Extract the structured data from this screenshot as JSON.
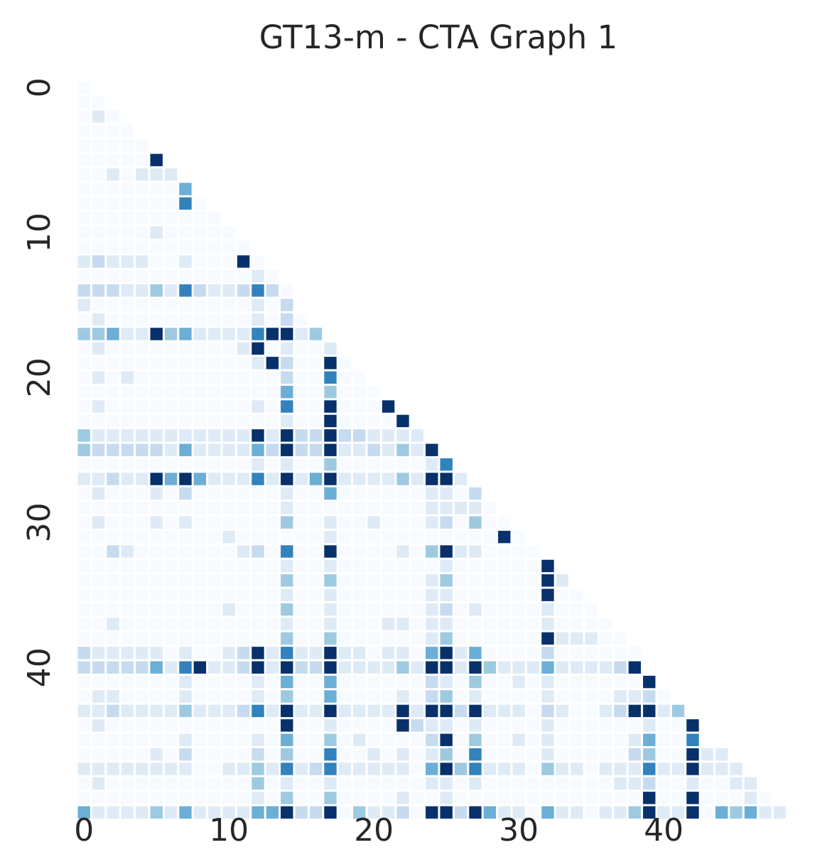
{
  "chart_data": {
    "type": "heatmap",
    "title": "GT13-m - CTA Graph 1",
    "xlabel": "",
    "ylabel": "",
    "mask": "lower-triangle",
    "n": 49,
    "x_ticks": [
      0,
      10,
      20,
      30,
      40
    ],
    "y_ticks": [
      0,
      10,
      20,
      30,
      40
    ],
    "colormap": "Blues",
    "vmin": 0,
    "vmax": 6,
    "grid": false,
    "colorbar": false,
    "rows": [
      [
        0
      ],
      [
        0,
        0
      ],
      [
        0,
        1,
        0
      ],
      [
        0,
        0,
        0,
        0
      ],
      [
        0,
        0,
        0,
        0,
        0
      ],
      [
        0,
        0,
        0,
        0,
        0,
        6
      ],
      [
        0,
        0,
        1,
        0,
        1,
        1,
        1
      ],
      [
        0,
        0,
        0,
        0,
        0,
        0,
        0,
        4
      ],
      [
        0,
        0,
        0,
        0,
        0,
        0,
        0,
        5,
        0
      ],
      [
        0,
        0,
        0,
        0,
        0,
        0,
        0,
        0,
        0,
        0
      ],
      [
        0,
        0,
        0,
        0,
        0,
        1,
        0,
        0,
        0,
        0,
        0
      ],
      [
        0,
        0,
        0,
        0,
        0,
        0,
        0,
        0,
        0,
        0,
        0,
        0
      ],
      [
        1,
        2,
        1,
        1,
        1,
        0,
        0,
        1,
        0,
        0,
        0,
        6,
        0
      ],
      [
        0,
        0,
        0,
        0,
        0,
        0,
        0,
        0,
        0,
        0,
        0,
        0,
        1,
        0
      ],
      [
        2,
        2,
        2,
        1,
        1,
        3,
        1,
        5,
        2,
        1,
        1,
        2,
        5,
        2,
        0
      ],
      [
        1,
        0,
        0,
        0,
        0,
        0,
        0,
        0,
        0,
        0,
        0,
        0,
        1,
        0,
        2
      ],
      [
        0,
        1,
        0,
        0,
        0,
        0,
        0,
        0,
        0,
        0,
        0,
        0,
        1,
        0,
        2,
        0
      ],
      [
        3,
        3,
        4,
        1,
        1,
        6,
        3,
        4,
        1,
        1,
        1,
        1,
        5,
        6,
        6,
        1,
        3
      ],
      [
        0,
        1,
        0,
        0,
        0,
        0,
        0,
        0,
        0,
        0,
        0,
        1,
        6,
        0,
        1,
        0,
        0,
        1
      ],
      [
        0,
        0,
        0,
        0,
        0,
        0,
        0,
        0,
        0,
        0,
        0,
        0,
        1,
        6,
        2,
        0,
        0,
        6,
        0
      ],
      [
        0,
        1,
        0,
        1,
        0,
        0,
        0,
        0,
        0,
        0,
        0,
        0,
        0,
        0,
        2,
        0,
        0,
        5,
        0,
        0
      ],
      [
        0,
        0,
        0,
        0,
        0,
        0,
        0,
        0,
        0,
        0,
        0,
        0,
        0,
        0,
        4,
        0,
        0,
        3,
        0,
        0,
        0
      ],
      [
        0,
        1,
        0,
        0,
        0,
        0,
        0,
        0,
        0,
        0,
        0,
        0,
        1,
        0,
        5,
        0,
        0,
        6,
        0,
        0,
        0,
        6
      ],
      [
        0,
        0,
        0,
        0,
        0,
        0,
        0,
        0,
        0,
        0,
        0,
        0,
        0,
        0,
        1,
        0,
        0,
        6,
        0,
        0,
        0,
        0,
        6
      ],
      [
        3,
        1,
        1,
        1,
        1,
        1,
        1,
        1,
        1,
        1,
        1,
        1,
        6,
        1,
        6,
        2,
        2,
        6,
        2,
        2,
        1,
        1,
        1,
        1
      ],
      [
        3,
        2,
        2,
        2,
        2,
        2,
        1,
        4,
        1,
        1,
        1,
        1,
        4,
        2,
        6,
        2,
        2,
        6,
        1,
        1,
        2,
        1,
        3,
        1,
        6
      ],
      [
        0,
        0,
        0,
        0,
        0,
        0,
        0,
        0,
        0,
        0,
        0,
        0,
        1,
        0,
        1,
        0,
        0,
        3,
        0,
        0,
        0,
        0,
        0,
        0,
        1,
        5
      ],
      [
        1,
        1,
        2,
        1,
        1,
        6,
        4,
        6,
        4,
        1,
        1,
        1,
        5,
        1,
        6,
        1,
        4,
        6,
        1,
        1,
        1,
        1,
        3,
        1,
        6,
        6,
        1
      ],
      [
        0,
        1,
        0,
        0,
        0,
        1,
        0,
        2,
        0,
        0,
        0,
        0,
        0,
        0,
        1,
        0,
        0,
        4,
        0,
        0,
        0,
        0,
        0,
        0,
        1,
        1,
        0,
        2
      ],
      [
        0,
        0,
        0,
        0,
        0,
        0,
        0,
        0,
        0,
        0,
        0,
        0,
        0,
        0,
        1,
        0,
        0,
        0,
        0,
        0,
        0,
        0,
        0,
        0,
        1,
        1,
        1,
        1,
        0
      ],
      [
        0,
        1,
        0,
        0,
        0,
        1,
        0,
        1,
        0,
        0,
        0,
        0,
        0,
        0,
        3,
        0,
        0,
        1,
        0,
        0,
        1,
        0,
        0,
        0,
        1,
        2,
        0,
        3,
        0,
        0
      ],
      [
        0,
        0,
        0,
        0,
        0,
        0,
        0,
        0,
        0,
        0,
        1,
        0,
        0,
        0,
        0,
        0,
        0,
        1,
        0,
        0,
        0,
        0,
        0,
        0,
        0,
        0,
        0,
        0,
        0,
        6,
        0
      ],
      [
        0,
        0,
        2,
        1,
        0,
        0,
        0,
        0,
        0,
        0,
        0,
        1,
        2,
        0,
        5,
        0,
        0,
        6,
        0,
        0,
        0,
        0,
        1,
        0,
        3,
        6,
        1,
        1,
        0,
        0,
        0,
        0
      ],
      [
        0,
        0,
        0,
        0,
        0,
        0,
        0,
        0,
        0,
        0,
        0,
        0,
        0,
        0,
        1,
        0,
        0,
        1,
        0,
        0,
        0,
        0,
        0,
        0,
        0,
        1,
        0,
        0,
        0,
        0,
        0,
        0,
        6
      ],
      [
        0,
        0,
        0,
        0,
        0,
        0,
        0,
        0,
        0,
        0,
        0,
        0,
        0,
        0,
        3,
        0,
        0,
        3,
        0,
        0,
        0,
        0,
        0,
        0,
        1,
        3,
        0,
        0,
        0,
        0,
        0,
        0,
        6,
        1
      ],
      [
        0,
        0,
        0,
        0,
        0,
        0,
        0,
        0,
        0,
        0,
        0,
        0,
        0,
        0,
        1,
        0,
        0,
        1,
        0,
        0,
        0,
        0,
        0,
        0,
        1,
        1,
        0,
        0,
        0,
        0,
        0,
        0,
        6,
        0,
        0
      ],
      [
        0,
        0,
        0,
        0,
        0,
        0,
        0,
        0,
        0,
        0,
        1,
        0,
        0,
        0,
        3,
        0,
        0,
        1,
        0,
        0,
        0,
        0,
        0,
        0,
        1,
        2,
        0,
        1,
        0,
        0,
        0,
        0,
        1,
        0,
        0,
        0
      ],
      [
        0,
        0,
        1,
        0,
        0,
        0,
        0,
        0,
        0,
        0,
        0,
        0,
        0,
        0,
        1,
        0,
        0,
        1,
        0,
        0,
        0,
        1,
        1,
        0,
        1,
        1,
        0,
        0,
        0,
        0,
        0,
        0,
        1,
        0,
        0,
        0,
        0
      ],
      [
        0,
        0,
        0,
        0,
        0,
        0,
        0,
        0,
        0,
        0,
        0,
        0,
        0,
        0,
        3,
        0,
        0,
        3,
        0,
        0,
        0,
        0,
        0,
        0,
        1,
        3,
        0,
        0,
        0,
        0,
        0,
        0,
        6,
        1,
        1,
        1,
        0,
        0
      ],
      [
        2,
        1,
        1,
        1,
        1,
        1,
        0,
        1,
        0,
        0,
        1,
        2,
        6,
        1,
        5,
        1,
        1,
        6,
        1,
        1,
        0,
        1,
        1,
        0,
        4,
        6,
        1,
        4,
        0,
        0,
        0,
        0,
        2,
        0,
        0,
        0,
        0,
        0,
        0
      ],
      [
        2,
        2,
        2,
        2,
        2,
        4,
        1,
        5,
        6,
        1,
        1,
        2,
        6,
        1,
        6,
        2,
        2,
        6,
        1,
        1,
        1,
        1,
        3,
        1,
        6,
        6,
        1,
        6,
        3,
        1,
        1,
        1,
        4,
        1,
        1,
        1,
        1,
        2,
        6
      ],
      [
        0,
        0,
        0,
        0,
        0,
        0,
        0,
        1,
        0,
        0,
        0,
        0,
        1,
        0,
        4,
        0,
        0,
        4,
        0,
        0,
        0,
        0,
        0,
        0,
        2,
        1,
        0,
        3,
        0,
        0,
        1,
        0,
        1,
        0,
        0,
        0,
        0,
        0,
        0,
        6
      ],
      [
        0,
        1,
        1,
        0,
        0,
        0,
        0,
        1,
        0,
        0,
        0,
        0,
        1,
        0,
        3,
        0,
        0,
        4,
        0,
        0,
        0,
        0,
        1,
        0,
        2,
        3,
        0,
        1,
        0,
        0,
        0,
        0,
        1,
        0,
        0,
        0,
        0,
        1,
        1,
        2,
        0
      ],
      [
        1,
        1,
        2,
        1,
        1,
        1,
        1,
        3,
        1,
        1,
        1,
        2,
        5,
        1,
        6,
        1,
        1,
        6,
        1,
        1,
        1,
        1,
        6,
        1,
        6,
        6,
        2,
        6,
        1,
        1,
        1,
        0,
        2,
        1,
        0,
        0,
        1,
        2,
        6,
        6,
        1,
        3
      ],
      [
        0,
        1,
        0,
        0,
        0,
        0,
        0,
        0,
        0,
        0,
        0,
        0,
        0,
        0,
        6,
        0,
        0,
        1,
        0,
        0,
        0,
        0,
        6,
        2,
        1,
        1,
        0,
        1,
        0,
        0,
        0,
        0,
        1,
        0,
        0,
        0,
        0,
        0,
        0,
        1,
        0,
        0,
        6
      ],
      [
        0,
        0,
        0,
        0,
        0,
        0,
        0,
        1,
        0,
        0,
        0,
        0,
        1,
        0,
        4,
        0,
        0,
        3,
        0,
        1,
        0,
        0,
        0,
        0,
        2,
        6,
        0,
        3,
        0,
        0,
        1,
        0,
        1,
        0,
        0,
        0,
        0,
        0,
        1,
        4,
        0,
        0,
        5
      ],
      [
        0,
        0,
        0,
        0,
        0,
        1,
        0,
        2,
        0,
        0,
        0,
        0,
        2,
        0,
        3,
        0,
        0,
        5,
        0,
        0,
        1,
        0,
        1,
        0,
        1,
        3,
        0,
        5,
        0,
        0,
        0,
        0,
        1,
        0,
        0,
        0,
        0,
        0,
        2,
        3,
        0,
        0,
        6,
        1,
        1
      ],
      [
        1,
        1,
        1,
        1,
        1,
        1,
        1,
        1,
        0,
        0,
        1,
        1,
        3,
        1,
        5,
        1,
        2,
        5,
        1,
        1,
        1,
        1,
        1,
        0,
        4,
        6,
        3,
        5,
        1,
        1,
        1,
        0,
        3,
        1,
        1,
        0,
        1,
        1,
        1,
        5,
        1,
        1,
        6,
        1,
        1,
        1
      ],
      [
        0,
        1,
        0,
        0,
        0,
        0,
        0,
        0,
        0,
        0,
        0,
        0,
        3,
        0,
        1,
        0,
        0,
        1,
        0,
        0,
        0,
        0,
        0,
        0,
        1,
        1,
        0,
        1,
        0,
        0,
        0,
        0,
        0,
        0,
        0,
        0,
        0,
        1,
        1,
        2,
        0,
        0,
        1,
        0,
        0,
        1,
        1
      ],
      [
        0,
        0,
        0,
        0,
        0,
        0,
        0,
        0,
        0,
        0,
        0,
        0,
        1,
        0,
        3,
        0,
        0,
        3,
        0,
        0,
        0,
        0,
        1,
        0,
        0,
        1,
        0,
        0,
        0,
        0,
        0,
        0,
        0,
        0,
        0,
        0,
        0,
        0,
        0,
        6,
        0,
        0,
        6,
        0,
        0,
        0,
        1,
        0
      ],
      [
        4,
        1,
        1,
        1,
        1,
        3,
        1,
        4,
        1,
        1,
        1,
        1,
        4,
        4,
        6,
        2,
        2,
        6,
        0,
        3,
        1,
        1,
        2,
        0,
        6,
        6,
        2,
        6,
        4,
        1,
        1,
        0,
        4,
        1,
        1,
        0,
        1,
        1,
        3,
        6,
        1,
        1,
        6,
        0,
        4,
        3,
        4,
        1,
        1
      ]
    ]
  }
}
